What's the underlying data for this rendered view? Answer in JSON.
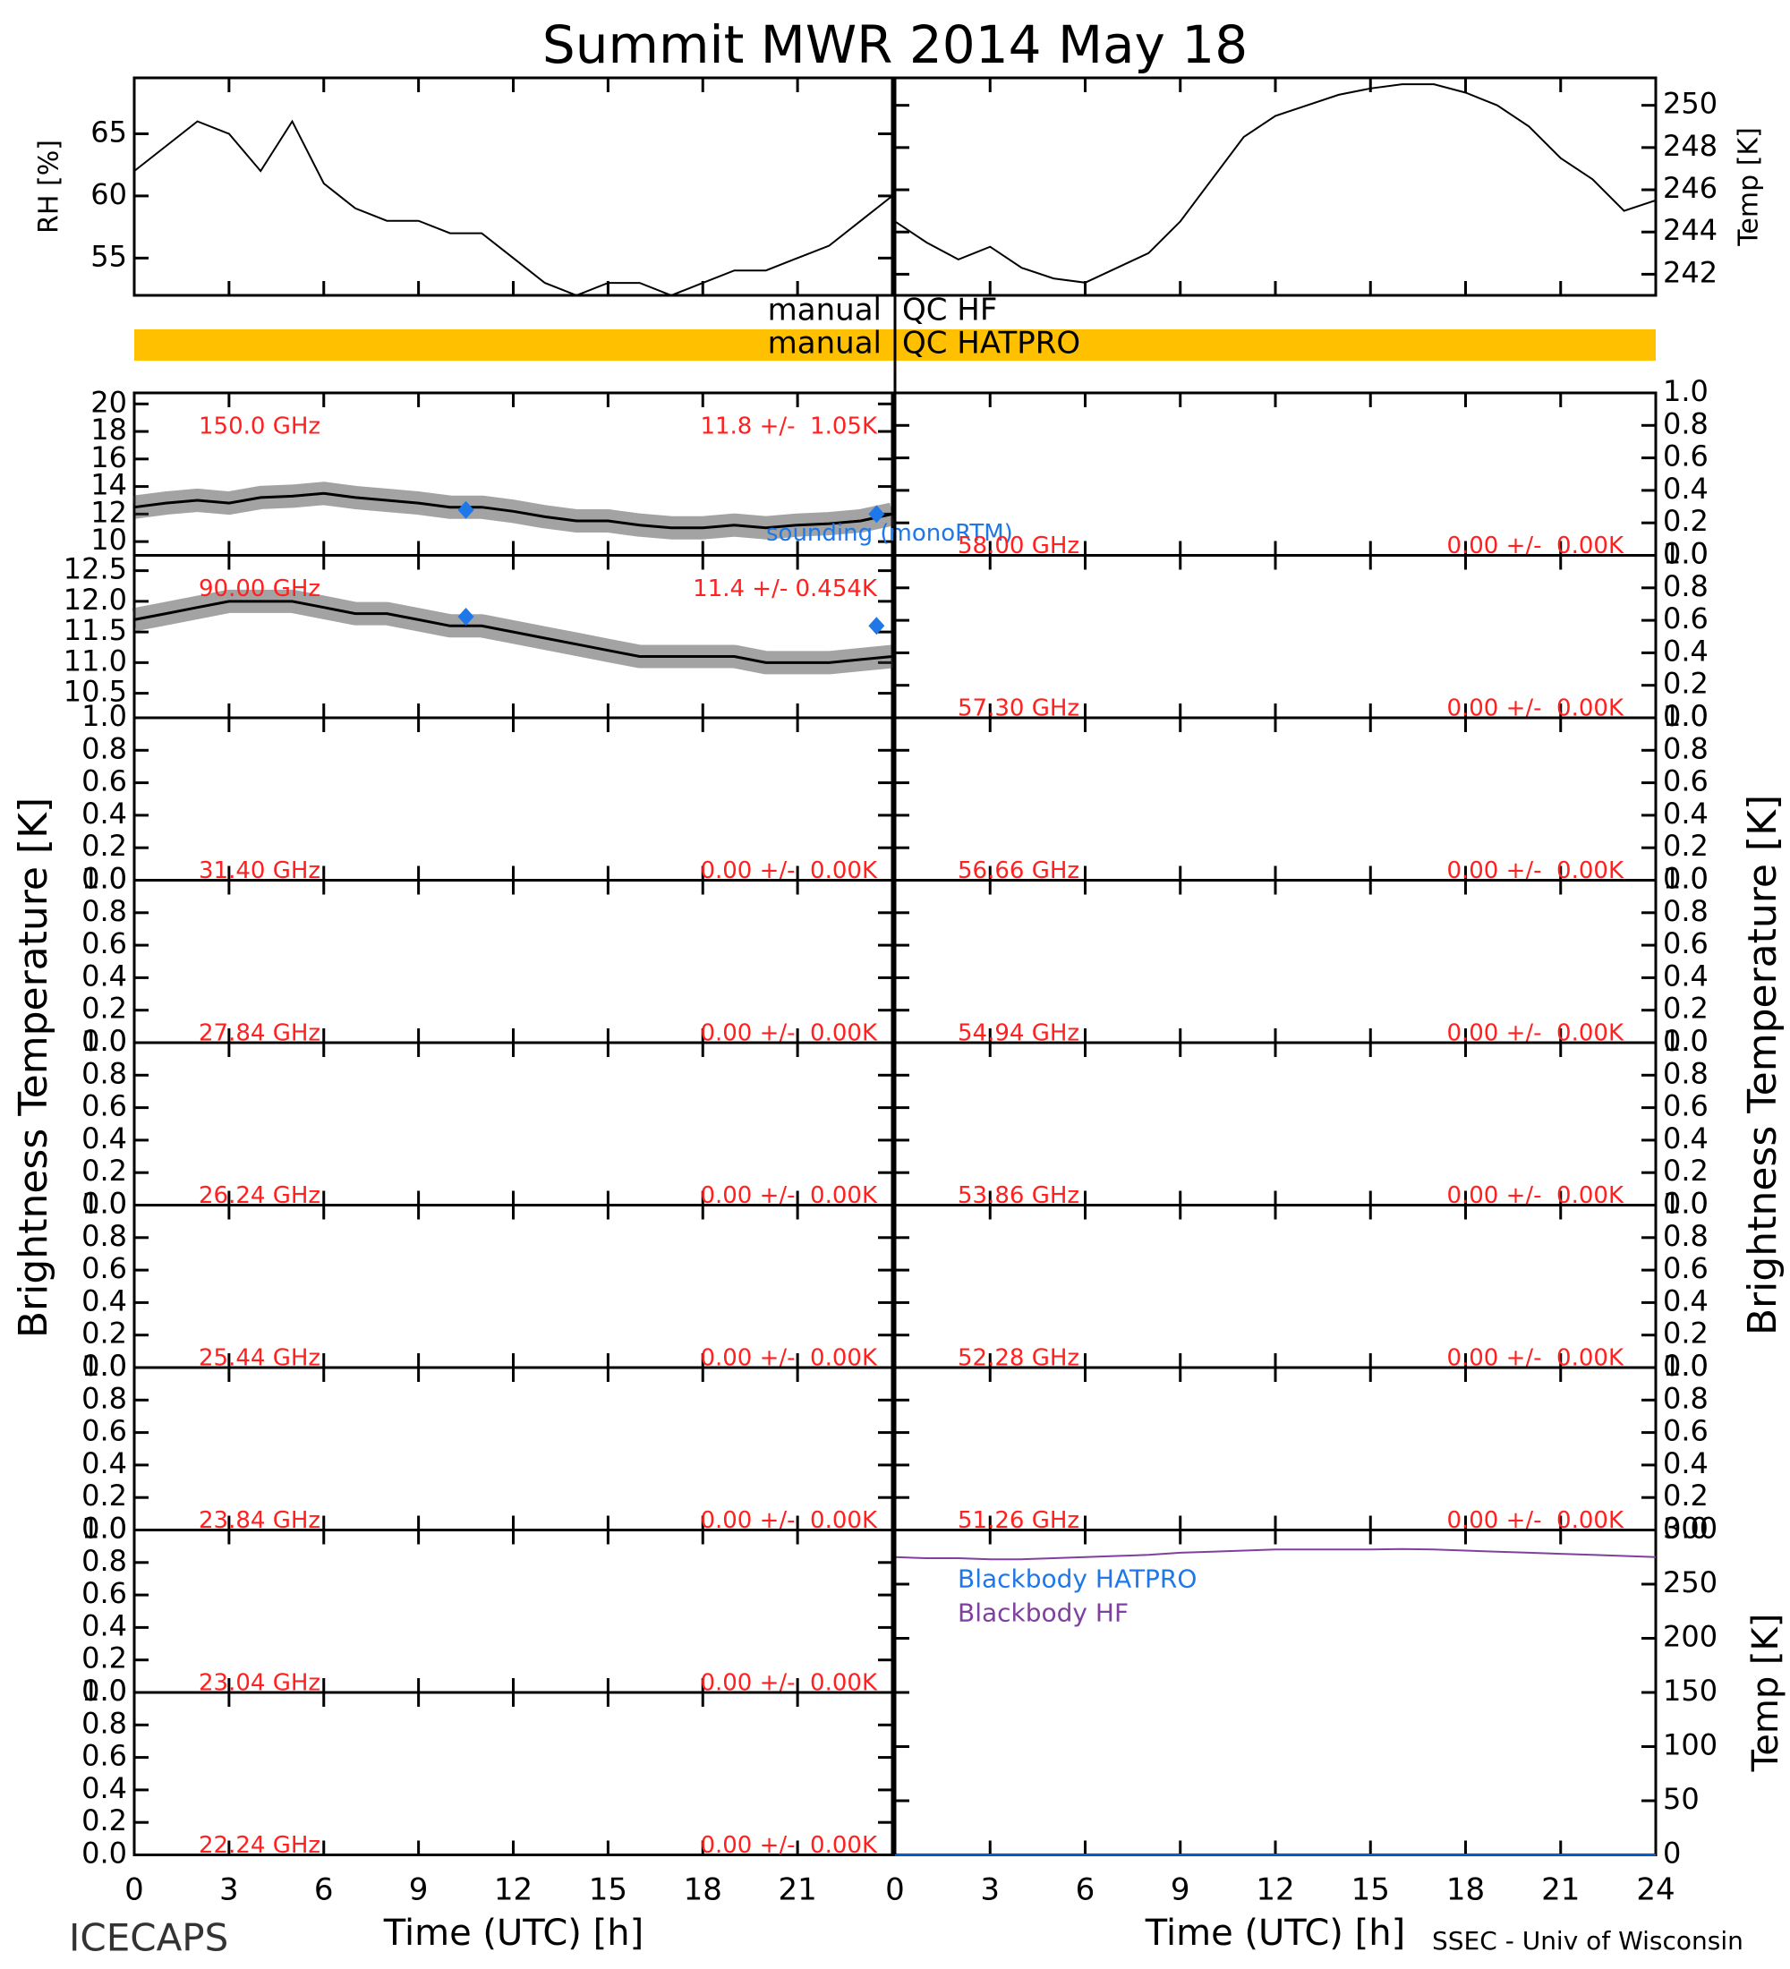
{
  "title": "Summit MWR 2014 May 18",
  "side_label": "Brightness Temperature [K]",
  "footer": {
    "left": "ICECAPS",
    "right": "SSEC - Univ of Wisconsin"
  },
  "x_axes": [
    {
      "xlim": [
        0,
        24
      ],
      "xticks": [
        0,
        3,
        6,
        9,
        12,
        15,
        18,
        21
      ],
      "label": "Time (UTC) [h]"
    },
    {
      "xlim": [
        0,
        24
      ],
      "xticks": [
        0,
        3,
        6,
        9,
        12,
        15,
        18,
        21,
        24
      ],
      "label": "Time (UTC) [h]"
    }
  ],
  "qc": [
    {
      "text": "manual",
      "flag": "QC HF"
    },
    {
      "text": "manual",
      "flag": "QC HATPRO",
      "color": "#ffc000"
    }
  ],
  "chart_data": [
    {
      "type": "line",
      "ylabel": "RH [%]",
      "ylim": [
        52,
        69.5
      ],
      "yticks": [
        55,
        60,
        65
      ],
      "x": [
        0,
        1,
        2,
        3,
        4,
        5,
        6,
        7,
        8,
        9,
        10,
        11,
        12,
        13,
        14,
        15,
        16,
        17,
        18,
        19,
        20,
        21,
        22,
        23,
        24
      ],
      "series": [
        {
          "color": "#000000",
          "values": [
            62,
            64,
            66,
            65,
            62,
            66,
            61,
            59,
            58,
            58,
            57,
            57,
            55,
            53,
            52,
            53,
            53,
            52,
            53,
            54,
            54,
            55,
            56,
            58,
            60
          ]
        }
      ]
    },
    {
      "type": "line",
      "ylabel": "Temp [K]",
      "ylim": [
        241,
        251.3
      ],
      "yticks": [
        242,
        244,
        246,
        248,
        250
      ],
      "x": [
        0,
        1,
        2,
        3,
        4,
        5,
        6,
        7,
        8,
        9,
        10,
        11,
        12,
        13,
        14,
        15,
        16,
        17,
        18,
        19,
        20,
        21,
        22,
        23,
        24
      ],
      "series": [
        {
          "color": "#000000",
          "values": [
            244.5,
            243.5,
            242.7,
            243.3,
            242.3,
            241.8,
            241.6,
            242.3,
            243,
            244.5,
            246.5,
            248.5,
            249.5,
            250,
            250.5,
            250.8,
            251,
            251,
            250.6,
            250,
            249,
            247.5,
            246.5,
            245,
            245.5
          ]
        }
      ]
    },
    {
      "type": "line",
      "frequency": "150.0 GHz",
      "stats": "11.8 +/-  1.05K",
      "label_color": "#ff2020",
      "ylim": [
        9,
        20.8
      ],
      "yticks": [
        10,
        12,
        14,
        16,
        18,
        20
      ],
      "x": [
        0,
        1,
        2,
        3,
        4,
        5,
        6,
        7,
        8,
        9,
        10,
        11,
        12,
        13,
        14,
        15,
        16,
        17,
        18,
        19,
        20,
        21,
        22,
        23,
        24
      ],
      "series": [
        {
          "color": "#000000",
          "values": [
            12.5,
            12.8,
            13,
            12.8,
            13.2,
            13.3,
            13.5,
            13.2,
            13,
            12.8,
            12.5,
            12.5,
            12.2,
            11.8,
            11.5,
            11.5,
            11.2,
            11,
            11,
            11.2,
            11,
            11.2,
            11.3,
            11.5,
            12
          ]
        }
      ],
      "points": {
        "name": "sounding (monoRTM)",
        "color": "#1f78e8",
        "x": [
          10.5,
          23.5
        ],
        "values": [
          12.3,
          12
        ]
      }
    },
    {
      "type": "line",
      "frequency": "90.00 GHz",
      "stats": "11.4 +/- 0.454K",
      "label_color": "#ff2020",
      "ylim": [
        10.1,
        12.75
      ],
      "yticks": [
        10.5,
        {
          "value": 11,
          "label": "11.0"
        },
        11.5,
        {
          "value": 12,
          "label": "12.0"
        },
        12.5
      ],
      "x": [
        0,
        1,
        2,
        3,
        4,
        5,
        6,
        7,
        8,
        9,
        10,
        11,
        12,
        13,
        14,
        15,
        16,
        17,
        18,
        19,
        20,
        21,
        22,
        23,
        24
      ],
      "series": [
        {
          "color": "#000000",
          "values": [
            11.7,
            11.8,
            11.9,
            12,
            12,
            12,
            11.9,
            11.8,
            11.8,
            11.7,
            11.6,
            11.6,
            11.5,
            11.4,
            11.3,
            11.2,
            11.1,
            11.1,
            11.1,
            11.1,
            11,
            11,
            11,
            11.05,
            11.1
          ]
        }
      ],
      "points": {
        "color": "#1f78e8",
        "x": [
          10.5,
          23.5
        ],
        "values": [
          11.75,
          11.6
        ]
      }
    },
    {
      "type": "line",
      "frequency": "31.40 GHz",
      "stats": "0.00 +/-  0.00K",
      "label_color": "#ff2020",
      "ylim": [
        0,
        1
      ],
      "yticks": [
        {
          "value": 0,
          "label": "0.0"
        },
        0.2,
        0.4,
        0.6,
        0.8,
        {
          "value": 1,
          "label": "1.0"
        }
      ]
    },
    {
      "type": "line",
      "frequency": "27.84 GHz",
      "stats": "0.00 +/-  0.00K",
      "label_color": "#ff2020",
      "ylim": [
        0,
        1
      ],
      "yticks": [
        {
          "value": 0,
          "label": "0.0"
        },
        0.2,
        0.4,
        0.6,
        0.8,
        {
          "value": 1,
          "label": "1.0"
        }
      ]
    },
    {
      "type": "line",
      "frequency": "26.24 GHz",
      "stats": "0.00 +/-  0.00K",
      "label_color": "#ff2020",
      "ylim": [
        0,
        1
      ],
      "yticks": [
        {
          "value": 0,
          "label": "0.0"
        },
        0.2,
        0.4,
        0.6,
        0.8,
        {
          "value": 1,
          "label": "1.0"
        }
      ]
    },
    {
      "type": "line",
      "frequency": "25.44 GHz",
      "stats": "0.00 +/-  0.00K",
      "label_color": "#ff2020",
      "ylim": [
        0,
        1
      ],
      "yticks": [
        {
          "value": 0,
          "label": "0.0"
        },
        0.2,
        0.4,
        0.6,
        0.8,
        {
          "value": 1,
          "label": "1.0"
        }
      ]
    },
    {
      "type": "line",
      "frequency": "23.84 GHz",
      "stats": "0.00 +/-  0.00K",
      "label_color": "#ff2020",
      "ylim": [
        0,
        1
      ],
      "yticks": [
        {
          "value": 0,
          "label": "0.0"
        },
        0.2,
        0.4,
        0.6,
        0.8,
        {
          "value": 1,
          "label": "1.0"
        }
      ]
    },
    {
      "type": "line",
      "frequency": "23.04 GHz",
      "stats": "0.00 +/-  0.00K",
      "label_color": "#ff2020",
      "ylim": [
        0,
        1
      ],
      "yticks": [
        {
          "value": 0,
          "label": "0.0"
        },
        0.2,
        0.4,
        0.6,
        0.8,
        {
          "value": 1,
          "label": "1.0"
        }
      ]
    },
    {
      "type": "line",
      "frequency": "22.24 GHz",
      "stats": "0.00 +/-  0.00K",
      "label_color": "#ff2020",
      "ylim": [
        0,
        1
      ],
      "yticks": [
        {
          "value": 0,
          "label": "0.0"
        },
        0.2,
        0.4,
        0.6,
        0.8,
        {
          "value": 1,
          "label": "1.0"
        }
      ]
    },
    {
      "type": "line",
      "frequency": "58.00 GHz",
      "stats": "0.00 +/-  0.00K",
      "label_color": "#ff2020",
      "ylim": [
        0,
        1
      ],
      "yticks": [
        {
          "value": 0,
          "label": "0.0"
        },
        0.2,
        0.4,
        0.6,
        0.8,
        {
          "value": 1,
          "label": "1.0"
        }
      ]
    },
    {
      "type": "line",
      "frequency": "57.30 GHz",
      "stats": "0.00 +/-  0.00K",
      "label_color": "#ff2020",
      "ylim": [
        0,
        1
      ],
      "yticks": [
        {
          "value": 0,
          "label": "0.0"
        },
        0.2,
        0.4,
        0.6,
        0.8,
        {
          "value": 1,
          "label": "1.0"
        }
      ]
    },
    {
      "type": "line",
      "frequency": "56.66 GHz",
      "stats": "0.00 +/-  0.00K",
      "label_color": "#ff2020",
      "ylim": [
        0,
        1
      ],
      "yticks": [
        {
          "value": 0,
          "label": "0.0"
        },
        0.2,
        0.4,
        0.6,
        0.8,
        {
          "value": 1,
          "label": "1.0"
        }
      ]
    },
    {
      "type": "line",
      "frequency": "54.94 GHz",
      "stats": "0.00 +/-  0.00K",
      "label_color": "#ff2020",
      "ylim": [
        0,
        1
      ],
      "yticks": [
        {
          "value": 0,
          "label": "0.0"
        },
        0.2,
        0.4,
        0.6,
        0.8,
        {
          "value": 1,
          "label": "1.0"
        }
      ]
    },
    {
      "type": "line",
      "frequency": "53.86 GHz",
      "stats": "0.00 +/-  0.00K",
      "label_color": "#ff2020",
      "ylim": [
        0,
        1
      ],
      "yticks": [
        {
          "value": 0,
          "label": "0.0"
        },
        0.2,
        0.4,
        0.6,
        0.8,
        {
          "value": 1,
          "label": "1.0"
        }
      ]
    },
    {
      "type": "line",
      "frequency": "52.28 GHz",
      "stats": "0.00 +/-  0.00K",
      "label_color": "#ff2020",
      "ylim": [
        0,
        1
      ],
      "yticks": [
        {
          "value": 0,
          "label": "0.0"
        },
        0.2,
        0.4,
        0.6,
        0.8,
        {
          "value": 1,
          "label": "1.0"
        }
      ]
    },
    {
      "type": "line",
      "frequency": "51.26 GHz",
      "stats": "0.00 +/-  0.00K",
      "label_color": "#ff2020",
      "ylim": [
        0,
        1
      ],
      "yticks": [
        {
          "value": 0,
          "label": "0.0"
        },
        0.2,
        0.4,
        0.6,
        0.8,
        {
          "value": 1,
          "label": "1.0"
        }
      ]
    },
    {
      "type": "line",
      "ylabel": "Temp [K]",
      "ylim": [
        0,
        300
      ],
      "yticks": [
        0,
        50,
        100,
        150,
        200,
        250,
        300
      ],
      "x": [
        0,
        1,
        2,
        3,
        4,
        5,
        6,
        7,
        8,
        9,
        10,
        11,
        12,
        13,
        14,
        15,
        16,
        17,
        18,
        19,
        20,
        21,
        22,
        23,
        24
      ],
      "series": [
        {
          "name": "Blackbody HATPRO",
          "color": "#1f78e8",
          "values": [
            0,
            0,
            0,
            0,
            0,
            0,
            0,
            0,
            0,
            0,
            0,
            0,
            0,
            0,
            0,
            0,
            0,
            0,
            0,
            0,
            0,
            0,
            0,
            0,
            0
          ]
        },
        {
          "name": "Blackbody HF",
          "color": "#8040a0",
          "values": [
            275,
            274,
            274,
            273,
            273,
            274,
            275,
            276,
            277,
            279,
            280,
            281,
            282,
            282,
            282,
            282,
            282.5,
            282,
            281,
            280,
            279,
            278,
            277,
            276,
            275
          ]
        }
      ]
    }
  ]
}
